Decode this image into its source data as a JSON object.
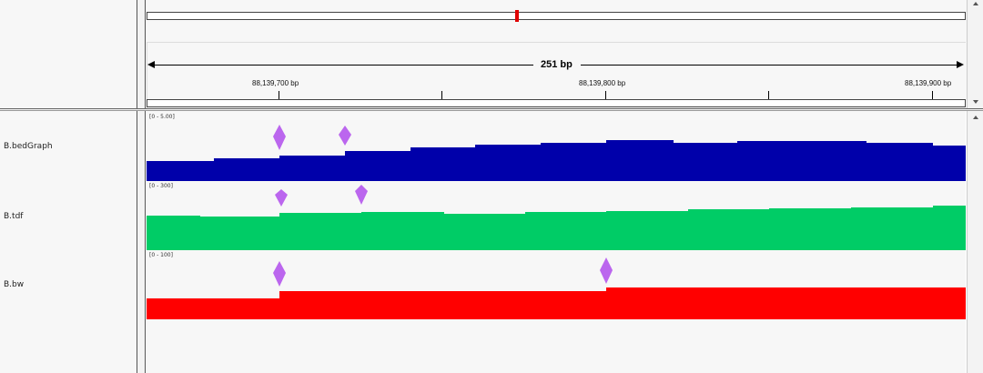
{
  "header": {
    "span_label": "251 bp",
    "ruler_labels": [
      "88,139,700 bp",
      "88,139,800 bp",
      "88,139,900 bp"
    ]
  },
  "tracks": [
    {
      "name": "B.bedGraph",
      "range": "[0 - 5.00]",
      "color": "#0000aa"
    },
    {
      "name": "B.tdf",
      "range": "[0 - 300]",
      "color": "#00cc66"
    },
    {
      "name": "B.bw",
      "range": "[0 - 100]",
      "color": "#ff0000"
    }
  ],
  "marker_color": "#bb66ee",
  "ideogram_marker_color": "#e00000"
}
